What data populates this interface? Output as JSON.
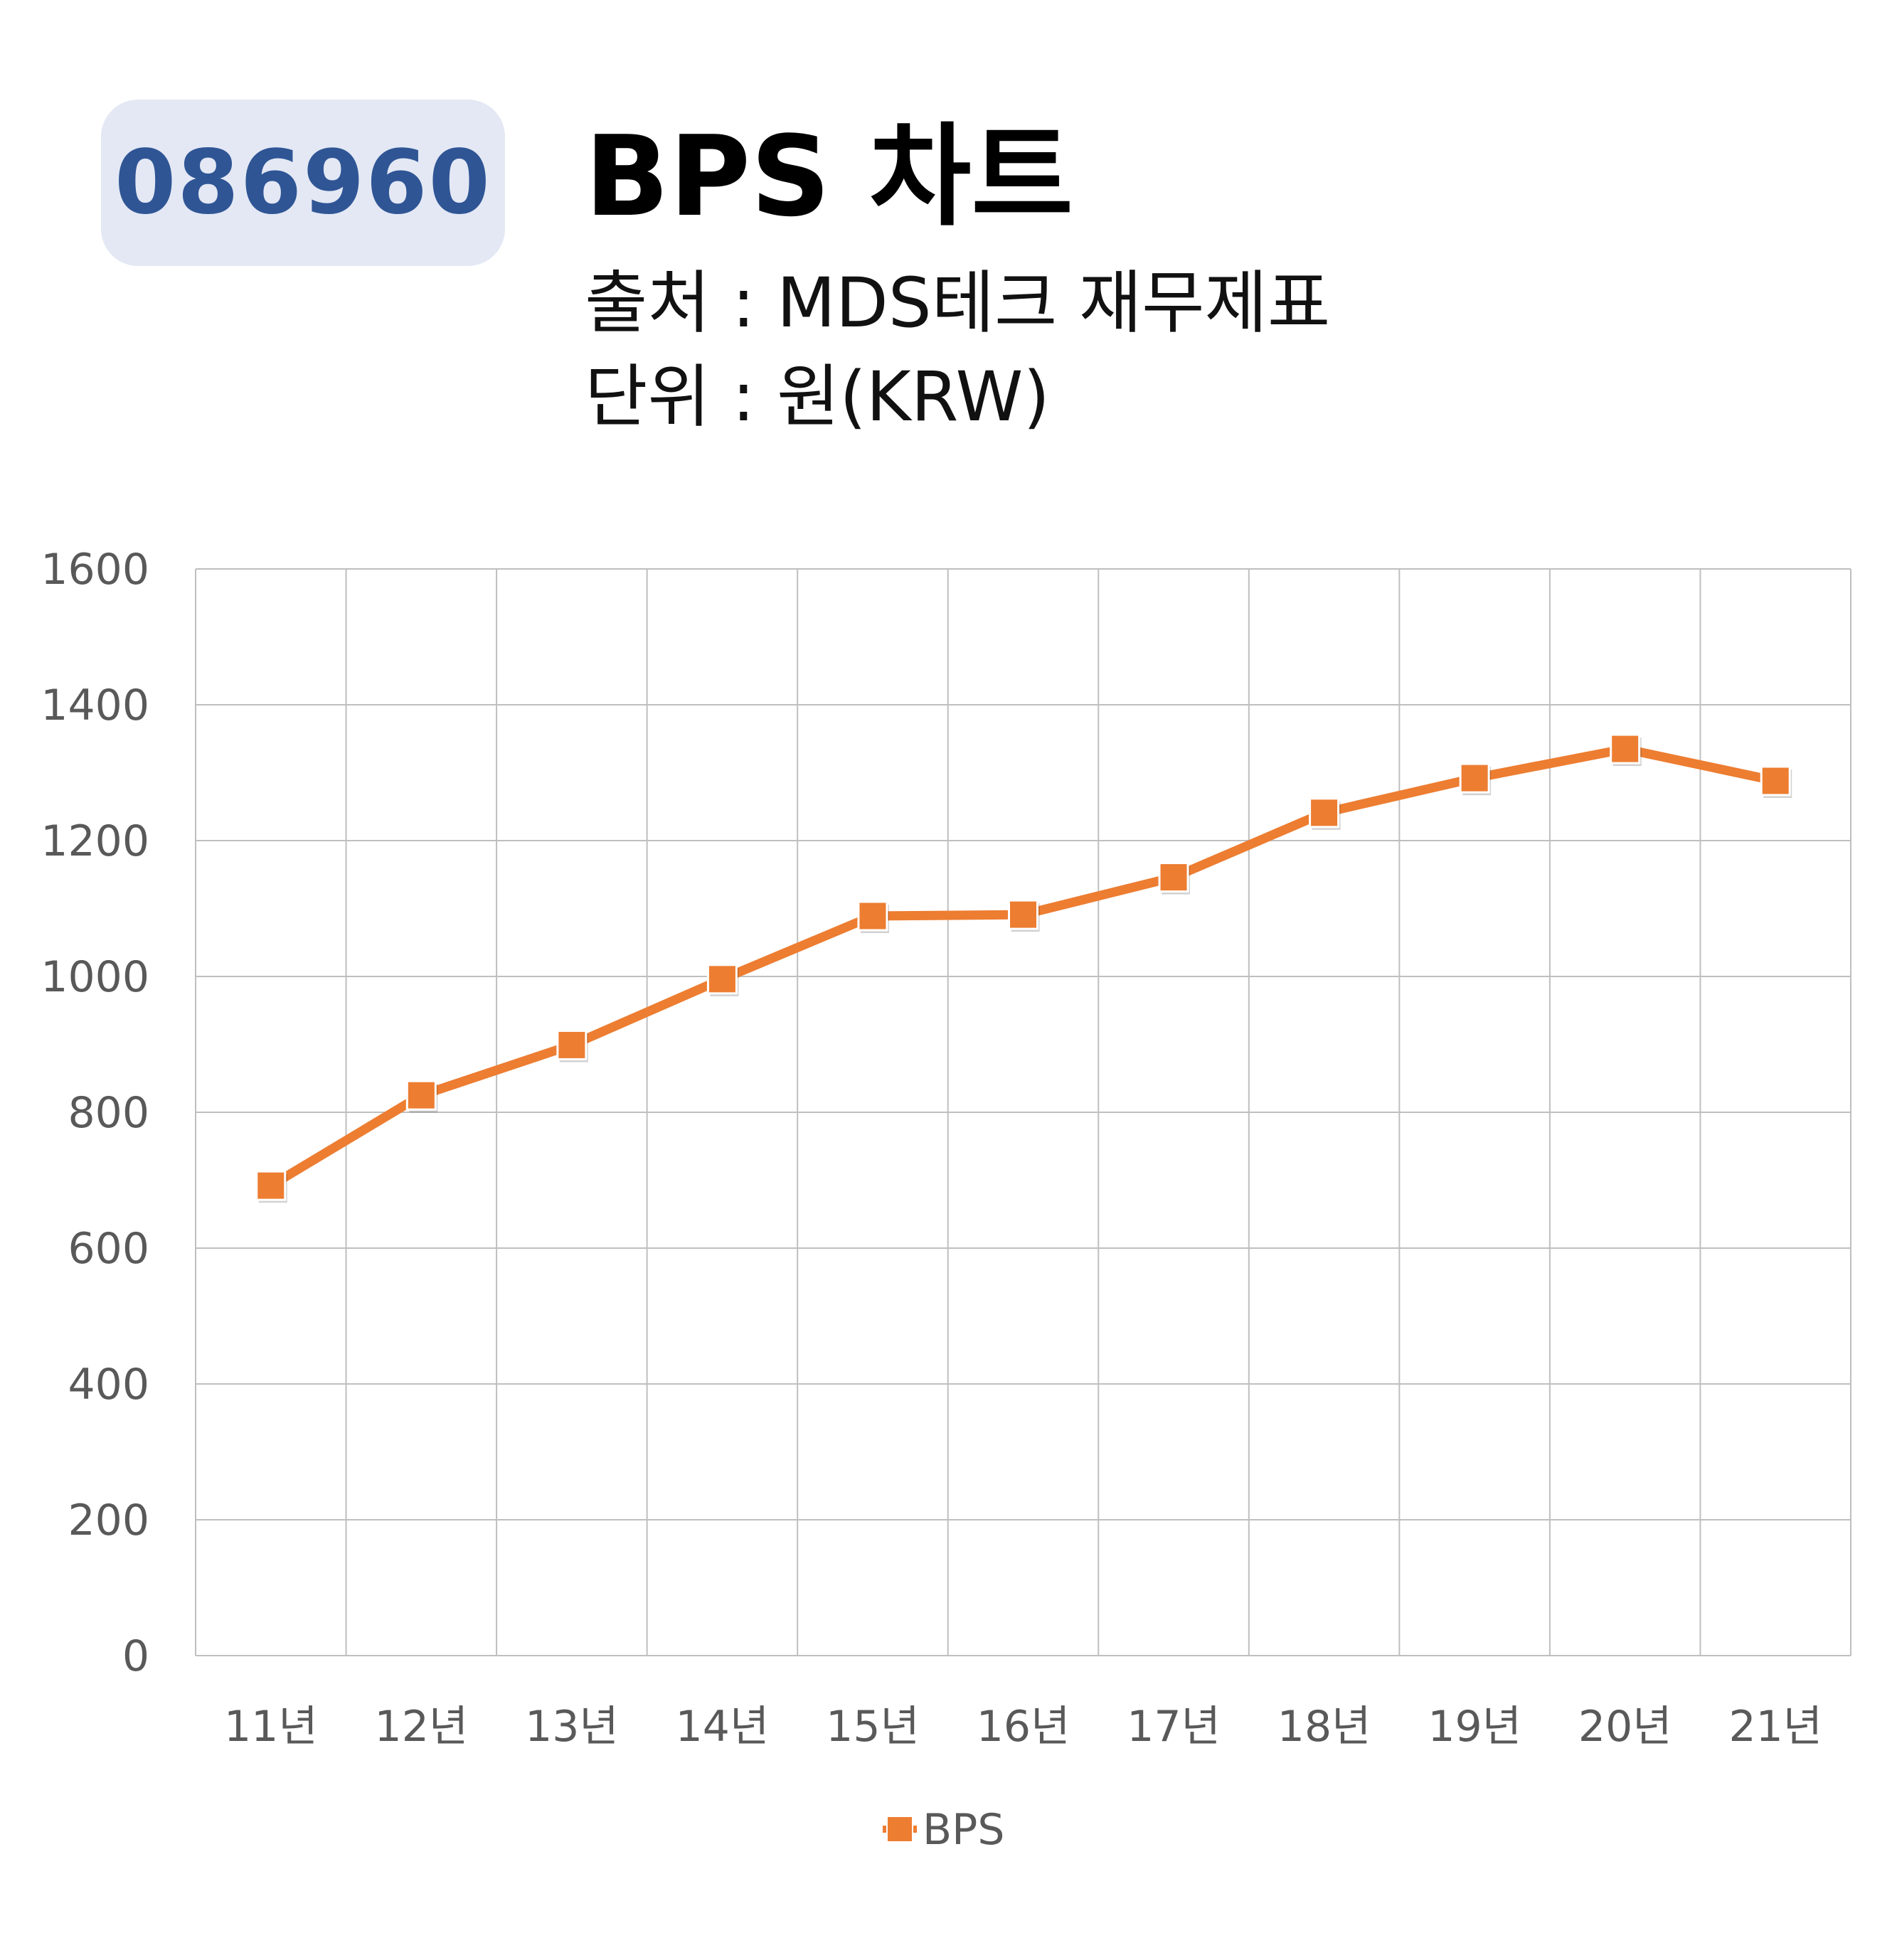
{
  "header": {
    "code": "086960",
    "title": "BPS 차트",
    "source": "출처 : MDS테크 재무제표",
    "unit": "단위 : 원(KRW)"
  },
  "chart_data": {
    "type": "line",
    "categories": [
      "11년",
      "12년",
      "13년",
      "14년",
      "15년",
      "16년",
      "17년",
      "18년",
      "19년",
      "20년",
      "21년"
    ],
    "series": [
      {
        "name": "BPS",
        "values": [
          692,
          825,
          899,
          996,
          1089,
          1091,
          1146,
          1241,
          1292,
          1335,
          1288
        ],
        "color": "#ed7d31"
      }
    ],
    "ylim": [
      0,
      1600
    ],
    "yticks": [
      0,
      200,
      400,
      600,
      800,
      1000,
      1200,
      1400,
      1600
    ],
    "grid": true,
    "legend": "bottom",
    "marker": "square"
  }
}
